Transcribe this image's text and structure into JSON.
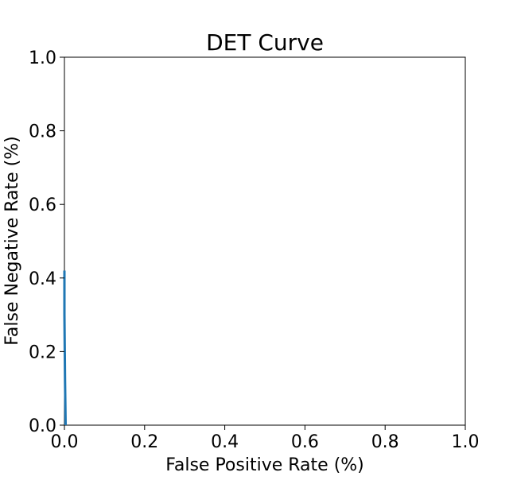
{
  "chart_data": {
    "type": "line",
    "title": "DET Curve",
    "xlabel": "False Positive Rate (%)",
    "ylabel": "False Negative Rate (%)",
    "xlim": [
      0,
      1
    ],
    "ylim": [
      0,
      1
    ],
    "xticks": [
      0.0,
      0.2,
      0.4,
      0.6,
      0.8,
      1.0
    ],
    "xtick_labels": [
      "0.0",
      "0.2",
      "0.4",
      "0.6",
      "0.8",
      "1.0"
    ],
    "yticks": [
      0.0,
      0.2,
      0.4,
      0.6,
      0.8,
      1.0
    ],
    "ytick_labels": [
      "0.0",
      "0.2",
      "0.4",
      "0.6",
      "0.8",
      "1.0"
    ],
    "grid": false,
    "legend": "none",
    "series": [
      {
        "color": "#1f77b4",
        "x": [
          0.0,
          0.0,
          0.0015,
          0.003
        ],
        "y": [
          0.42,
          0.3,
          0.12,
          0.0
        ]
      }
    ]
  }
}
